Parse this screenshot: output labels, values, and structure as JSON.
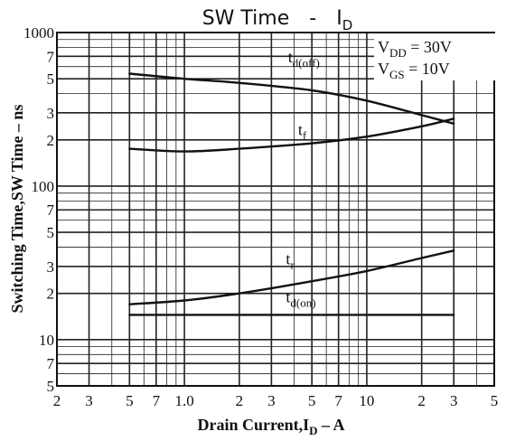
{
  "chart_data": {
    "type": "line",
    "title": "SW Time  -  I_D",
    "title_parts": {
      "main": "SW Time",
      "sep": "-",
      "sym": "I",
      "sub": "D"
    },
    "xlabel": "Drain Current,I_D – A",
    "xlabel_parts": {
      "pre": "Drain Current,I",
      "sub": "D",
      "post": " – A"
    },
    "ylabel": "Switching Time,SW Time – ns",
    "x_scale": "log",
    "y_scale": "log",
    "xlim": [
      0.2,
      50
    ],
    "ylim": [
      5,
      1000
    ],
    "grid": true,
    "x_tick_labels": [
      {
        "v": 0.2,
        "t": "2"
      },
      {
        "v": 0.3,
        "t": "3"
      },
      {
        "v": 0.5,
        "t": "5"
      },
      {
        "v": 0.7,
        "t": "7"
      },
      {
        "v": 1.0,
        "t": "1.0"
      },
      {
        "v": 2,
        "t": "2"
      },
      {
        "v": 3,
        "t": "3"
      },
      {
        "v": 5,
        "t": "5"
      },
      {
        "v": 7,
        "t": "7"
      },
      {
        "v": 10,
        "t": "10"
      },
      {
        "v": 20,
        "t": "2"
      },
      {
        "v": 30,
        "t": "3"
      },
      {
        "v": 50,
        "t": "5"
      }
    ],
    "y_tick_labels": [
      {
        "v": 1000,
        "t": "1000"
      },
      {
        "v": 700,
        "t": "7"
      },
      {
        "v": 500,
        "t": "5"
      },
      {
        "v": 300,
        "t": "3"
      },
      {
        "v": 200,
        "t": "2"
      },
      {
        "v": 100,
        "t": "100"
      },
      {
        "v": 70,
        "t": "7"
      },
      {
        "v": 50,
        "t": "5"
      },
      {
        "v": 30,
        "t": "3"
      },
      {
        "v": 20,
        "t": "2"
      },
      {
        "v": 10,
        "t": "10"
      },
      {
        "v": 7,
        "t": "7"
      },
      {
        "v": 5,
        "t": "5"
      }
    ],
    "series": [
      {
        "name": "t_d(off)",
        "label_main": "t",
        "label_sub": "d(off)",
        "label_at": [
          3.7,
          640
        ],
        "x": [
          0.5,
          1,
          2,
          5,
          10,
          20,
          30
        ],
        "y": [
          540,
          500,
          470,
          420,
          360,
          290,
          255
        ]
      },
      {
        "name": "t_f",
        "label_main": "t",
        "label_sub": "f",
        "label_at": [
          4.2,
          215
        ],
        "x": [
          0.5,
          1,
          2,
          5,
          10,
          20,
          30
        ],
        "y": [
          175,
          168,
          175,
          190,
          210,
          245,
          275
        ]
      },
      {
        "name": "t_r",
        "label_main": "t",
        "label_sub": "r",
        "label_at": [
          3.6,
          31
        ],
        "x": [
          0.5,
          1,
          2,
          5,
          10,
          20,
          30
        ],
        "y": [
          17,
          18,
          20,
          24,
          28,
          34,
          38
        ]
      },
      {
        "name": "t_d(on)",
        "label_main": "t",
        "label_sub": "d(on)",
        "label_at": [
          3.6,
          17.5
        ],
        "x": [
          0.5,
          30
        ],
        "y": [
          14.5,
          14.5
        ]
      }
    ],
    "conditions": [
      {
        "pre": "V",
        "sub": "DD",
        "post": " = 30V"
      },
      {
        "pre": "V",
        "sub": "GS",
        "post": " = 10V"
      }
    ]
  }
}
